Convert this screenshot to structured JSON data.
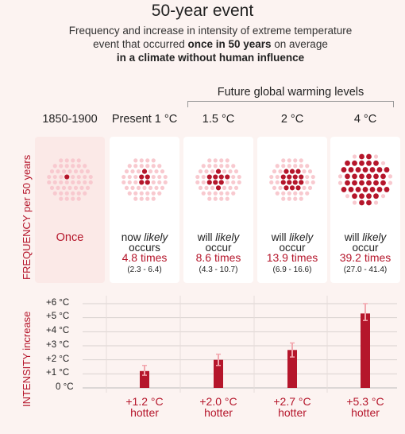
{
  "title": "50-year event",
  "subtitle": {
    "line1": "Frequency and increase in intensity of extreme temperature",
    "line2_pre": "event that occurred ",
    "line2_bold": "once in 50 years",
    "line2_post": " on average",
    "line3": "in a climate without human influence"
  },
  "future_label": "Future global warming levels",
  "frequency_axis_label": "FREQUENCY per 50 years",
  "intensity_axis_label": "INTENSITY increase",
  "colors": {
    "accent": "#b5162b",
    "dot_light": "#f8c9cf",
    "panel_bg": "#fbe9e7",
    "background": "#fcf3f1",
    "error_bar": "#f2a7ae"
  },
  "columns": [
    {
      "header": "1850-1900",
      "freq_label": "Once",
      "freq_line2": "",
      "freq_value": "",
      "freq_range": "",
      "hotter_value": "",
      "hotter_label": ""
    },
    {
      "header": "Present 1 °C",
      "freq_label": "now likely",
      "freq_line2": "occurs",
      "freq_value": "4.8 times",
      "freq_range": "(2.3 - 6.4)",
      "hotter_value": "+1.2 °C",
      "hotter_label": "hotter"
    },
    {
      "header": "1.5 °C",
      "freq_label": "will likely",
      "freq_line2": "occur",
      "freq_value": "8.6 times",
      "freq_range": "(4.3 - 10.7)",
      "hotter_value": "+2.0 °C",
      "hotter_label": "hotter"
    },
    {
      "header": "2 °C",
      "freq_label": "will likely",
      "freq_line2": "occur",
      "freq_value": "13.9 times",
      "freq_range": "(6.9 - 16.6)",
      "hotter_value": "+2.7 °C",
      "hotter_label": "hotter"
    },
    {
      "header": "4 °C",
      "freq_label": "will likely",
      "freq_line2": "occur",
      "freq_value": "39.2 times",
      "freq_range": "(27.0 - 41.4)",
      "hotter_value": "+5.3 °C",
      "hotter_label": "hotter"
    }
  ],
  "chart_data": [
    {
      "type": "scatter",
      "title": "",
      "xlabel": "",
      "ylabel": "FREQUENCY per 50 years",
      "categories": [
        "1850-1900",
        "Present 1 °C",
        "1.5 °C",
        "2 °C",
        "4 °C"
      ],
      "total_dots": 50,
      "highlighted_dots": [
        1,
        5,
        9,
        14,
        39
      ],
      "values": [
        1,
        4.8,
        8.6,
        13.9,
        39.2
      ],
      "ranges": [
        [
          1,
          1
        ],
        [
          2.3,
          6.4
        ],
        [
          4.3,
          10.7
        ],
        [
          6.9,
          16.6
        ],
        [
          27.0,
          41.4
        ]
      ]
    },
    {
      "type": "bar",
      "title": "",
      "xlabel": "",
      "ylabel": "INTENSITY increase",
      "categories": [
        "1850-1900",
        "Present 1 °C",
        "1.5 °C",
        "2 °C",
        "4 °C"
      ],
      "values": [
        0,
        1.2,
        2.0,
        2.7,
        5.3
      ],
      "error_low": [
        0,
        0.9,
        1.6,
        2.2,
        4.8
      ],
      "error_high": [
        0,
        1.6,
        2.4,
        3.2,
        6.0
      ],
      "ylim": [
        0,
        6
      ],
      "yticks": [
        "+6 °C",
        "+5 °C",
        "+4 °C",
        "+3 °C",
        "+2 °C",
        "+1 °C",
        "0 °C"
      ],
      "grid": true
    }
  ]
}
